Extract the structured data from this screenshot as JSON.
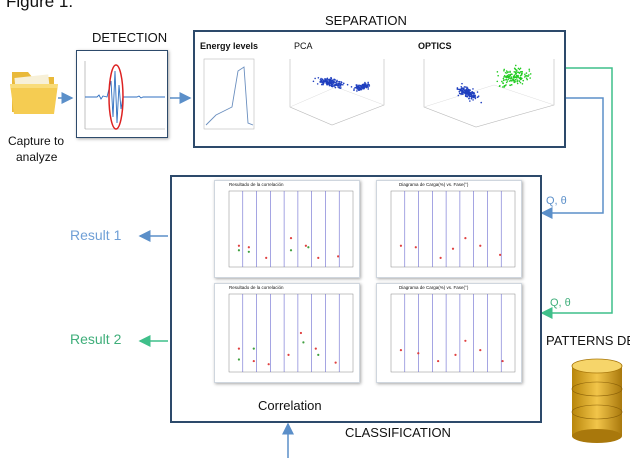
{
  "figure_label": "Figure 1.",
  "stages": {
    "detection": "DETECTION",
    "separation": "SEPARATION",
    "classification": "CLASSIFICATION"
  },
  "input": {
    "label_line1": "Capture to",
    "label_line2": "analyze"
  },
  "separation_panels": {
    "energy": "Energy levels",
    "pca": "PCA",
    "optics": "OPTICS"
  },
  "classification": {
    "correlation_label": "Correlation",
    "left_plot_title": "Resultado de la correlación",
    "right_plot_title": "Diagrama de Carga(%) vs. Fase(°)",
    "y_axis": "Carga(%)",
    "x_axis": "Fase(°)"
  },
  "results": {
    "result1": "Result 1",
    "result2": "Result 2"
  },
  "arrows": {
    "qtheta": "Q, θ"
  },
  "database": {
    "label": "PATTERNS DB"
  },
  "colors": {
    "result1": "#6f9fd6",
    "result2": "#3fae7a",
    "arrow_blue": "#5b8fc9",
    "arrow_green": "#3fbf8a",
    "frame": "#2d4a6b",
    "db_gold": "#d9a520"
  }
}
